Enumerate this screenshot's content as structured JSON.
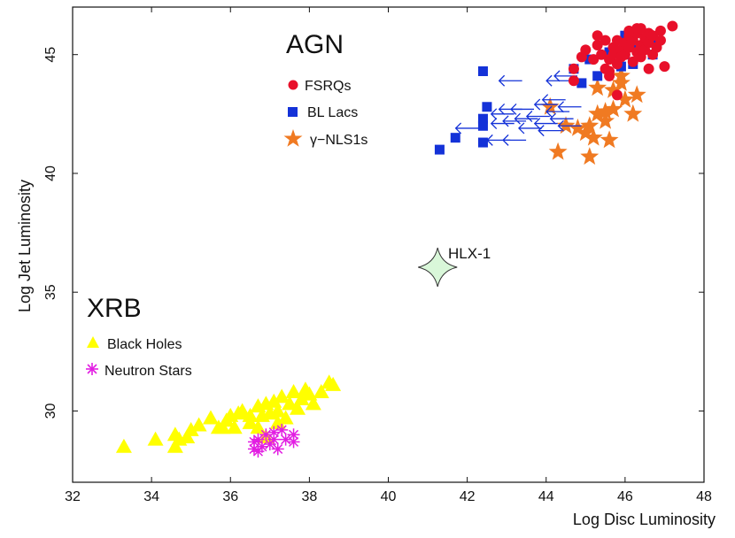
{
  "chart_data": {
    "type": "scatter",
    "title": "",
    "xlabel": "Log Disc Luminosity",
    "ylabel": "Log Jet Luminosity",
    "xlim": [
      32,
      48
    ],
    "ylim": [
      27,
      47
    ],
    "xticks": [
      32,
      34,
      36,
      38,
      40,
      42,
      44,
      46,
      48
    ],
    "yticks": [
      30,
      35,
      40,
      45
    ],
    "grid": false,
    "groups": [
      {
        "label": "AGN",
        "legend": [
          "FSRQs",
          "BL Lacs",
          "γ−NLS1s"
        ]
      },
      {
        "label": "XRB",
        "legend": [
          "Black Holes",
          "Neutron Stars"
        ]
      }
    ],
    "series": [
      {
        "name": "FSRQs",
        "marker": "circle",
        "color": "#e8102a",
        "points": [
          [
            44.7,
            43.9
          ],
          [
            44.7,
            44.4
          ],
          [
            44.9,
            44.9
          ],
          [
            45.0,
            45.2
          ],
          [
            45.2,
            44.8
          ],
          [
            45.3,
            45.4
          ],
          [
            45.4,
            45.0
          ],
          [
            45.5,
            44.4
          ],
          [
            45.5,
            45.6
          ],
          [
            45.6,
            44.8
          ],
          [
            45.6,
            44.1
          ],
          [
            45.7,
            45.3
          ],
          [
            45.7,
            45.0
          ],
          [
            45.8,
            45.6
          ],
          [
            45.8,
            44.6
          ],
          [
            45.9,
            45.2
          ],
          [
            45.9,
            44.9
          ],
          [
            46.0,
            45.5
          ],
          [
            46.0,
            45.0
          ],
          [
            46.1,
            45.8
          ],
          [
            46.1,
            45.3
          ],
          [
            46.2,
            44.7
          ],
          [
            46.2,
            45.6
          ],
          [
            46.3,
            45.1
          ],
          [
            46.3,
            45.9
          ],
          [
            46.4,
            45.4
          ],
          [
            46.4,
            44.9
          ],
          [
            46.5,
            45.7
          ],
          [
            46.5,
            45.2
          ],
          [
            46.6,
            45.9
          ],
          [
            46.6,
            45.5
          ],
          [
            46.6,
            44.4
          ],
          [
            46.7,
            45.0
          ],
          [
            46.7,
            45.8
          ],
          [
            46.8,
            45.3
          ],
          [
            46.9,
            45.6
          ],
          [
            47.0,
            44.5
          ],
          [
            46.1,
            46.0
          ],
          [
            45.3,
            45.8
          ],
          [
            46.3,
            46.1
          ],
          [
            47.2,
            46.2
          ],
          [
            46.9,
            46.0
          ],
          [
            46.4,
            46.1
          ],
          [
            45.8,
            43.3
          ],
          [
            45.6,
            44.3
          ]
        ]
      },
      {
        "name": "BL Lacs",
        "marker": "square",
        "color": "#1432d8",
        "points": [
          [
            41.3,
            41.0
          ],
          [
            41.7,
            41.5
          ],
          [
            42.4,
            42.3
          ],
          [
            42.4,
            42.0
          ],
          [
            42.4,
            41.3
          ],
          [
            42.4,
            44.3
          ],
          [
            42.5,
            42.8
          ],
          [
            44.7,
            44.4
          ],
          [
            44.9,
            43.8
          ],
          [
            45.1,
            44.8
          ],
          [
            45.6,
            45.1
          ],
          [
            45.9,
            44.5
          ],
          [
            46.0,
            45.8
          ],
          [
            46.0,
            45.0
          ],
          [
            46.2,
            44.6
          ],
          [
            46.3,
            45.2
          ],
          [
            46.7,
            45.0
          ],
          [
            46.7,
            45.5
          ],
          [
            45.3,
            44.1
          ]
        ]
      },
      {
        "name": "BL Lacs (upper limits)",
        "marker": "arrow-left",
        "color": "#1432d8",
        "points": [
          [
            42.0,
            41.9
          ],
          [
            42.8,
            41.4
          ],
          [
            42.9,
            42.1
          ],
          [
            42.9,
            42.5
          ],
          [
            43.1,
            43.9
          ],
          [
            43.1,
            42.7
          ],
          [
            43.2,
            42.2
          ],
          [
            43.2,
            41.4
          ],
          [
            43.4,
            42.7
          ],
          [
            43.5,
            42.3
          ],
          [
            43.6,
            41.9
          ],
          [
            43.8,
            42.4
          ],
          [
            44.0,
            42.9
          ],
          [
            44.0,
            42.1
          ],
          [
            44.1,
            41.8
          ],
          [
            44.2,
            43.1
          ],
          [
            44.3,
            43.9
          ],
          [
            44.3,
            42.6
          ],
          [
            44.4,
            42.3
          ],
          [
            44.5,
            44.1
          ],
          [
            44.6,
            42.0
          ],
          [
            44.6,
            42.8
          ]
        ]
      },
      {
        "name": "γ−NLS1s",
        "marker": "star",
        "color": "#f07a22",
        "points": [
          [
            44.1,
            42.8
          ],
          [
            44.3,
            40.9
          ],
          [
            44.5,
            42.0
          ],
          [
            44.8,
            41.9
          ],
          [
            45.0,
            41.7
          ],
          [
            45.1,
            40.7
          ],
          [
            45.1,
            42.0
          ],
          [
            45.2,
            41.5
          ],
          [
            45.3,
            42.5
          ],
          [
            45.3,
            43.6
          ],
          [
            45.5,
            42.6
          ],
          [
            45.5,
            42.2
          ],
          [
            45.6,
            41.4
          ],
          [
            45.7,
            43.5
          ],
          [
            45.7,
            42.7
          ],
          [
            45.9,
            43.8
          ],
          [
            45.9,
            44.1
          ],
          [
            46.0,
            43.1
          ],
          [
            46.2,
            42.5
          ],
          [
            46.3,
            43.3
          ]
        ]
      },
      {
        "name": "Black Holes",
        "marker": "triangle",
        "color": "#ffff00",
        "points": [
          [
            33.3,
            28.5
          ],
          [
            34.1,
            28.8
          ],
          [
            34.6,
            28.5
          ],
          [
            34.7,
            28.8
          ],
          [
            34.9,
            28.9
          ],
          [
            35.0,
            29.2
          ],
          [
            35.2,
            29.4
          ],
          [
            35.5,
            29.7
          ],
          [
            35.8,
            29.3
          ],
          [
            36.0,
            29.8
          ],
          [
            36.1,
            29.3
          ],
          [
            36.2,
            29.9
          ],
          [
            36.3,
            30.0
          ],
          [
            36.5,
            29.5
          ],
          [
            36.7,
            30.2
          ],
          [
            36.7,
            29.3
          ],
          [
            36.8,
            29.8
          ],
          [
            36.9,
            30.3
          ],
          [
            37.0,
            29.9
          ],
          [
            37.1,
            30.4
          ],
          [
            37.2,
            30.0
          ],
          [
            37.3,
            30.6
          ],
          [
            37.4,
            29.7
          ],
          [
            37.5,
            30.3
          ],
          [
            37.6,
            30.8
          ],
          [
            37.7,
            30.1
          ],
          [
            37.8,
            30.5
          ],
          [
            37.9,
            30.9
          ],
          [
            38.0,
            30.7
          ],
          [
            38.1,
            30.3
          ],
          [
            38.3,
            30.8
          ],
          [
            38.5,
            31.2
          ],
          [
            38.6,
            31.1
          ],
          [
            36.5,
            29.8
          ],
          [
            35.7,
            29.3
          ],
          [
            37.2,
            29.5
          ],
          [
            36.9,
            28.9
          ],
          [
            34.6,
            29.0
          ],
          [
            35.9,
            29.6
          ]
        ]
      },
      {
        "name": "Neutron Stars",
        "marker": "asterisk",
        "color": "#e21ee2",
        "points": [
          [
            36.6,
            28.4
          ],
          [
            36.6,
            28.7
          ],
          [
            36.7,
            28.3
          ],
          [
            36.7,
            28.8
          ],
          [
            36.8,
            28.5
          ],
          [
            36.9,
            29.0
          ],
          [
            37.0,
            28.6
          ],
          [
            37.1,
            29.1
          ],
          [
            37.2,
            28.4
          ],
          [
            37.3,
            29.2
          ],
          [
            37.4,
            28.8
          ],
          [
            37.6,
            29.0
          ],
          [
            37.6,
            28.7
          ],
          [
            37.1,
            28.8
          ]
        ]
      },
      {
        "name": "HLX-1",
        "marker": "4-point-star",
        "color": "#d9f7d9",
        "points": [
          [
            41.25,
            36.05
          ]
        ]
      }
    ],
    "annotations": [
      {
        "text": "HLX-1",
        "x": 41.25,
        "y": 36.05
      }
    ]
  }
}
